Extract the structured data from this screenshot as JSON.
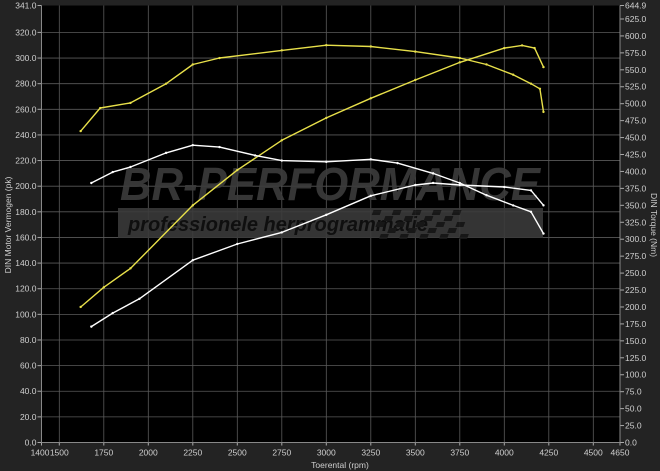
{
  "chart_data": {
    "type": "line",
    "title": "",
    "xlabel": "Toerental (rpm)",
    "ylabel": "DIN Motor Vermogen (pk)",
    "y2label": "DIN Torque (Nm)",
    "xlim": [
      1400,
      4650
    ],
    "ylim": [
      0,
      341.0
    ],
    "y2lim": [
      0,
      644.9
    ],
    "grid": true,
    "x_ticks": [
      "1400",
      "1500",
      "1750",
      "2000",
      "2250",
      "2500",
      "2750",
      "3000",
      "3250",
      "3500",
      "3750",
      "4000",
      "4250",
      "4500",
      "4650"
    ],
    "y_ticks": [
      "0.0",
      "20.0",
      "40.0",
      "60.0",
      "80.0",
      "100.0",
      "120.0",
      "140.0",
      "160.0",
      "180.0",
      "200.0",
      "220.0",
      "240.0",
      "260.0",
      "280.0",
      "300.0",
      "320.0",
      "341.0"
    ],
    "y2_ticks": [
      "0.0",
      "25.0",
      "50.0",
      "75.0",
      "100.0",
      "125.0",
      "150.0",
      "175.0",
      "200.0",
      "225.0",
      "250.0",
      "275.0",
      "300.0",
      "325.0",
      "350.0",
      "375.0",
      "400.0",
      "425.0",
      "450.0",
      "475.0",
      "500.0",
      "525.0",
      "550.0",
      "575.0",
      "600.0",
      "625.0",
      "644.9"
    ],
    "series": [
      {
        "axis": "left",
        "color": "#e8e04a",
        "x": [
          1620,
          1730,
          1900,
          2100,
          2250,
          2400,
          2750,
          3000,
          3250,
          3500,
          3750,
          3900,
          4050,
          4150,
          4200,
          4220
        ],
        "y": [
          243,
          261,
          265,
          280,
          295,
          300,
          306,
          310,
          309,
          305,
          300,
          295,
          287,
          280,
          276,
          258
        ]
      },
      {
        "axis": "right",
        "color": "#e8e04a",
        "x": [
          1620,
          1750,
          1900,
          2250,
          2500,
          2750,
          3000,
          3250,
          3500,
          3750,
          4000,
          4100,
          4170,
          4220
        ],
        "y": [
          200,
          229,
          257,
          350,
          402,
          446,
          479,
          508,
          535,
          561,
          582,
          586,
          582,
          554
        ]
      },
      {
        "axis": "left",
        "color": "#ffffff",
        "x": [
          1680,
          1800,
          1900,
          2100,
          2250,
          2400,
          2600,
          2750,
          3000,
          3250,
          3400,
          3600,
          3750,
          3900,
          4050,
          4150,
          4220
        ],
        "y": [
          202.5,
          211,
          215,
          226,
          232,
          230.5,
          224,
          220,
          219,
          221,
          218,
          210,
          202.5,
          193,
          185,
          180,
          163
        ]
      },
      {
        "axis": "right",
        "color": "#ffffff",
        "x": [
          1680,
          1800,
          1950,
          2250,
          2500,
          2750,
          3000,
          3250,
          3500,
          3600,
          3750,
          4000,
          4150,
          4220
        ],
        "y": [
          171,
          191,
          212,
          269,
          293,
          310,
          336,
          364,
          380,
          383,
          380,
          377,
          372,
          350
        ]
      }
    ]
  },
  "watermark": {
    "brand": "BR-PERFORMANCE",
    "tagline": "professionele herprogrammatie"
  }
}
